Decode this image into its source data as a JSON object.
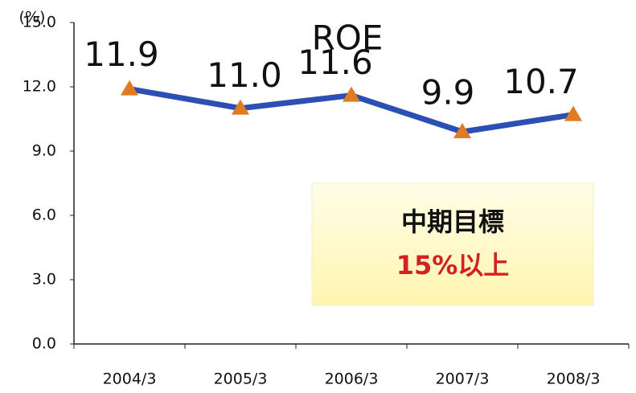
{
  "chart_data": {
    "type": "line",
    "title": "ROE",
    "y_label": "(%)",
    "categories": [
      "2004/3",
      "2005/3",
      "2006/3",
      "2007/3",
      "2008/3"
    ],
    "series": [
      {
        "name": "ROE",
        "color": "#2b4fb3",
        "marker_color": "#e07b22",
        "values": [
          11.9,
          11.0,
          11.6,
          9.9,
          10.7
        ],
        "value_labels": [
          "11.9",
          "11.0",
          "11.6",
          "9.9",
          "10.7"
        ]
      }
    ],
    "ylim": [
      0,
      15
    ],
    "yticks": [
      {
        "value": 0,
        "label": "0.0"
      },
      {
        "value": 3,
        "label": "3.0"
      },
      {
        "value": 6,
        "label": "6.0"
      },
      {
        "value": 9,
        "label": "9.0"
      },
      {
        "value": 12,
        "label": "12.0"
      },
      {
        "value": 15,
        "label": "15.0"
      }
    ],
    "annotation": {
      "title": "中期目標",
      "text": "15%以上"
    }
  }
}
